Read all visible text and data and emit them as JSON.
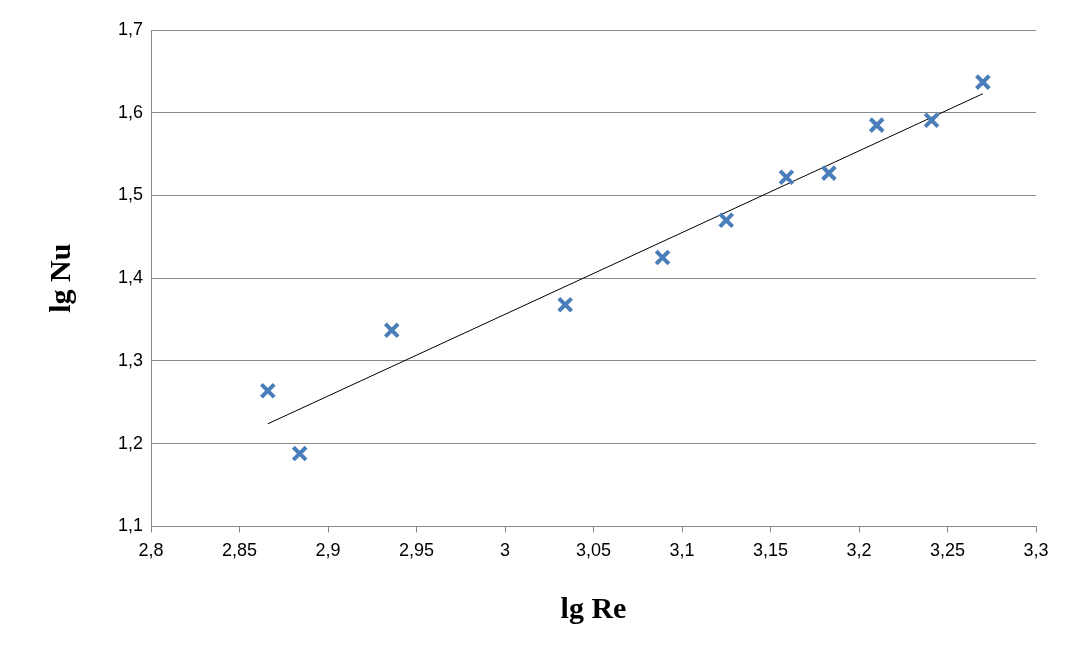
{
  "chart_data": {
    "type": "scatter",
    "xlabel": "lg Re",
    "ylabel": "lg Nu",
    "xlim": [
      2.8,
      3.3
    ],
    "xticks": [
      {
        "value": 2.8,
        "label": "2,8"
      },
      {
        "value": 2.85,
        "label": "2,85"
      },
      {
        "value": 2.9,
        "label": "2,9"
      },
      {
        "value": 2.95,
        "label": "2,95"
      },
      {
        "value": 3,
        "label": "3"
      },
      {
        "value": 3.05,
        "label": "3,05"
      },
      {
        "value": 3.1,
        "label": "3,1"
      },
      {
        "value": 3.15,
        "label": "3,15"
      },
      {
        "value": 3.2,
        "label": "3,2"
      },
      {
        "value": 3.25,
        "label": "3,25"
      },
      {
        "value": 3.3,
        "label": "3,3"
      }
    ],
    "ylim": [
      1.1,
      1.7
    ],
    "yticks": [
      {
        "value": 1.1,
        "label": "1,1"
      },
      {
        "value": 1.2,
        "label": "1,2"
      },
      {
        "value": 1.3,
        "label": "1,3"
      },
      {
        "value": 1.4,
        "label": "1,4"
      },
      {
        "value": 1.5,
        "label": "1,5"
      },
      {
        "value": 1.6,
        "label": "1,6"
      },
      {
        "value": 1.7,
        "label": "1,7"
      }
    ],
    "grid": "y",
    "legend": false,
    "series": [
      {
        "marker": "cross",
        "color": "#4a7ebb",
        "x": [
          2.866,
          2.884,
          2.936,
          3.034,
          3.089,
          3.125,
          3.159,
          3.183,
          3.21,
          3.241,
          3.27
        ],
        "values": [
          1.264,
          1.188,
          1.337,
          1.368,
          1.425,
          1.47,
          1.522,
          1.527,
          1.585,
          1.591,
          1.637
        ]
      },
      {
        "type": "line",
        "marker": "none",
        "color": "#000000",
        "x": [
          2.866,
          3.27
        ],
        "values": [
          1.224,
          1.623
        ]
      }
    ]
  }
}
